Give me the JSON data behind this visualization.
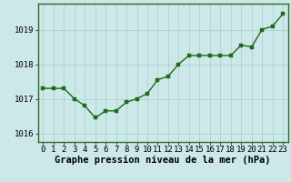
{
  "x": [
    0,
    1,
    2,
    3,
    4,
    5,
    6,
    7,
    8,
    9,
    10,
    11,
    12,
    13,
    14,
    15,
    16,
    17,
    18,
    19,
    20,
    21,
    22,
    23
  ],
  "y": [
    1017.3,
    1017.3,
    1017.3,
    1017.0,
    1016.8,
    1016.45,
    1016.65,
    1016.65,
    1016.9,
    1017.0,
    1017.15,
    1017.55,
    1017.65,
    1018.0,
    1018.25,
    1018.25,
    1018.25,
    1018.25,
    1018.25,
    1018.55,
    1018.5,
    1019.0,
    1019.1,
    1019.45
  ],
  "line_color": "#1a6b1a",
  "marker_color": "#1a6b1a",
  "bg_color": "#cce8e8",
  "grid_color": "#aacccc",
  "xlabel": "Graphe pression niveau de la mer (hPa)",
  "ylim": [
    1015.75,
    1019.75
  ],
  "yticks": [
    1016,
    1017,
    1018,
    1019
  ],
  "xticks": [
    0,
    1,
    2,
    3,
    4,
    5,
    6,
    7,
    8,
    9,
    10,
    11,
    12,
    13,
    14,
    15,
    16,
    17,
    18,
    19,
    20,
    21,
    22,
    23
  ],
  "xlabel_fontsize": 7.5,
  "tick_fontsize": 6.5,
  "line_width": 1.0,
  "marker_size": 2.5
}
